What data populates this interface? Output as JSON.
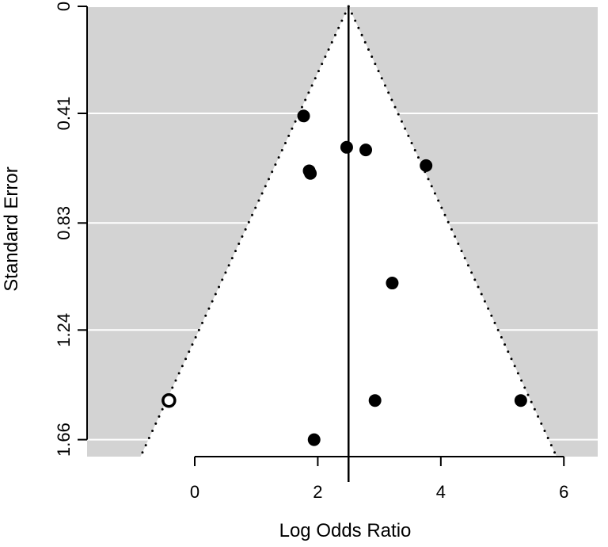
{
  "chart_data": {
    "type": "scatter",
    "subtype": "funnel-plot",
    "title": "",
    "xlabel": "Log Odds Ratio",
    "ylabel": "Standard Error",
    "xlim": [
      -1.75,
      6.55
    ],
    "ylim": [
      1.725,
      0
    ],
    "y_reversed": true,
    "xticks": [
      0,
      2,
      4,
      6
    ],
    "yticks": [
      0,
      0.41,
      0.83,
      1.24,
      1.66
    ],
    "ytick_labels": [
      "0",
      "0.41",
      "0.83",
      "1.24",
      "1.66"
    ],
    "grid": true,
    "background_color": "#d3d3d3",
    "funnel_fill": "#ffffff",
    "grid_color": "#ffffff",
    "estimate": 2.5,
    "funnel_multiplier": 1.96,
    "points": [
      {
        "x": 1.77,
        "y": 0.42,
        "filled": true
      },
      {
        "x": 2.47,
        "y": 0.54,
        "filled": true
      },
      {
        "x": 2.78,
        "y": 0.55,
        "filled": true
      },
      {
        "x": 1.86,
        "y": 0.63,
        "filled": true
      },
      {
        "x": 1.88,
        "y": 0.64,
        "filled": true
      },
      {
        "x": 3.76,
        "y": 0.61,
        "filled": true
      },
      {
        "x": 3.21,
        "y": 1.06,
        "filled": true
      },
      {
        "x": -0.42,
        "y": 1.51,
        "filled": false
      },
      {
        "x": 2.93,
        "y": 1.51,
        "filled": true
      },
      {
        "x": 5.3,
        "y": 1.51,
        "filled": true
      },
      {
        "x": 1.94,
        "y": 1.66,
        "filled": true
      }
    ]
  }
}
